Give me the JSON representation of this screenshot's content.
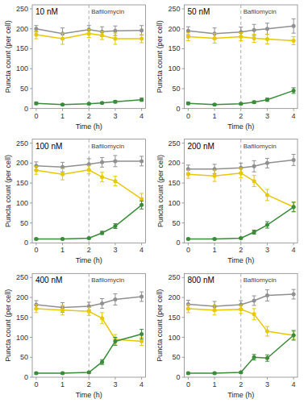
{
  "chart_data": [
    {
      "type": "line",
      "title": "10 nM",
      "xlabel": "Time (h)",
      "ylabel": "Puncta count (per cell)",
      "x": [
        0,
        1,
        2,
        2.5,
        3,
        4
      ],
      "xlim": [
        -0.15,
        4.15
      ],
      "xticks": [
        0,
        1,
        2,
        3,
        4
      ],
      "ylim": [
        0,
        260
      ],
      "yticks": [
        0,
        50,
        100,
        150,
        200,
        250
      ],
      "grid": false,
      "marker": "circle",
      "series": [
        {
          "color": "#909090",
          "values": [
            200,
            188,
            198,
            193,
            195,
            196
          ],
          "errors": [
            8,
            14,
            10,
            12,
            12,
            12
          ]
        },
        {
          "color": "#E8C800",
          "values": [
            185,
            175,
            188,
            183,
            175,
            175
          ],
          "errors": [
            10,
            14,
            10,
            10,
            14,
            10
          ]
        },
        {
          "color": "#3a8c3a",
          "values": [
            13,
            10,
            12,
            14,
            17,
            22
          ],
          "errors": [
            3,
            2,
            2,
            2,
            3,
            4
          ]
        }
      ],
      "annotations": [
        {
          "text": "Bafilomycin",
          "x": 2,
          "line_style": "dashed"
        }
      ]
    },
    {
      "type": "line",
      "title": "50 nM",
      "xlabel": "Time (h)",
      "ylabel": "Puncta count (per cell)",
      "x": [
        0,
        1,
        2,
        2.5,
        3,
        4
      ],
      "xlim": [
        -0.15,
        4.15
      ],
      "xticks": [
        0,
        1,
        2,
        3,
        4
      ],
      "ylim": [
        0,
        260
      ],
      "yticks": [
        0,
        50,
        100,
        150,
        200,
        250
      ],
      "grid": false,
      "marker": "circle",
      "series": [
        {
          "color": "#909090",
          "values": [
            195,
            188,
            192,
            197,
            200,
            207
          ],
          "errors": [
            10,
            14,
            12,
            14,
            14,
            18
          ]
        },
        {
          "color": "#E8C800",
          "values": [
            180,
            176,
            180,
            176,
            174,
            170
          ],
          "errors": [
            10,
            12,
            10,
            10,
            12,
            10
          ]
        },
        {
          "color": "#3a8c3a",
          "values": [
            13,
            10,
            12,
            16,
            22,
            45
          ],
          "errors": [
            3,
            2,
            2,
            3,
            4,
            7
          ]
        }
      ],
      "annotations": [
        {
          "text": "Bafilomycin",
          "x": 2,
          "line_style": "dashed"
        }
      ]
    },
    {
      "type": "line",
      "title": "100 nM",
      "xlabel": "Time (h)",
      "ylabel": "Puncta count (per cell)",
      "x": [
        0,
        1,
        2,
        2.5,
        3,
        4
      ],
      "xlim": [
        -0.15,
        4.15
      ],
      "xticks": [
        0,
        1,
        2,
        3,
        4
      ],
      "ylim": [
        0,
        260
      ],
      "yticks": [
        0,
        50,
        100,
        150,
        200,
        250
      ],
      "grid": false,
      "marker": "circle",
      "series": [
        {
          "color": "#909090",
          "values": [
            193,
            190,
            197,
            202,
            205,
            205
          ],
          "errors": [
            10,
            12,
            14,
            12,
            14,
            12
          ]
        },
        {
          "color": "#E8C800",
          "values": [
            182,
            172,
            183,
            165,
            155,
            110
          ],
          "errors": [
            10,
            14,
            10,
            12,
            12,
            14
          ]
        },
        {
          "color": "#3a8c3a",
          "values": [
            10,
            10,
            12,
            25,
            42,
            95
          ],
          "errors": [
            2,
            2,
            2,
            4,
            6,
            10
          ]
        }
      ],
      "annotations": [
        {
          "text": "Bafilomycin",
          "x": 2,
          "line_style": "dashed"
        }
      ]
    },
    {
      "type": "line",
      "title": "200 nM",
      "xlabel": "Time (h)",
      "ylabel": "Puncta count (per cell)",
      "x": [
        0,
        1,
        2,
        2.5,
        3,
        4
      ],
      "xlim": [
        -0.15,
        4.15
      ],
      "xticks": [
        0,
        1,
        2,
        3,
        4
      ],
      "ylim": [
        0,
        260
      ],
      "yticks": [
        0,
        50,
        100,
        150,
        200,
        250
      ],
      "grid": false,
      "marker": "circle",
      "series": [
        {
          "color": "#909090",
          "values": [
            185,
            185,
            188,
            192,
            200,
            208
          ],
          "errors": [
            10,
            12,
            12,
            14,
            12,
            14
          ]
        },
        {
          "color": "#E8C800",
          "values": [
            172,
            168,
            175,
            155,
            120,
            90
          ],
          "errors": [
            10,
            14,
            12,
            14,
            14,
            12
          ]
        },
        {
          "color": "#3a8c3a",
          "values": [
            10,
            10,
            12,
            27,
            45,
            90
          ],
          "errors": [
            2,
            2,
            2,
            5,
            8,
            12
          ]
        }
      ],
      "annotations": [
        {
          "text": "Bafilomycin",
          "x": 2,
          "line_style": "dashed"
        }
      ]
    },
    {
      "type": "line",
      "title": "400 nM",
      "xlabel": "Time (h)",
      "ylabel": "Puncta count (per cell)",
      "x": [
        0,
        1,
        2,
        2.5,
        3,
        4
      ],
      "xlim": [
        -0.15,
        4.15
      ],
      "xticks": [
        0,
        1,
        2,
        3,
        4
      ],
      "ylim": [
        0,
        260
      ],
      "yticks": [
        0,
        50,
        100,
        150,
        200,
        250
      ],
      "grid": false,
      "marker": "circle",
      "series": [
        {
          "color": "#909090",
          "values": [
            182,
            175,
            178,
            185,
            195,
            202
          ],
          "errors": [
            10,
            12,
            10,
            12,
            14,
            12
          ]
        },
        {
          "color": "#E8C800",
          "values": [
            172,
            168,
            165,
            148,
            95,
            90
          ],
          "errors": [
            10,
            12,
            10,
            14,
            12,
            10
          ]
        },
        {
          "color": "#3a8c3a",
          "values": [
            10,
            10,
            12,
            38,
            90,
            108
          ],
          "errors": [
            2,
            2,
            2,
            6,
            10,
            12
          ]
        }
      ],
      "annotations": [
        {
          "text": "Bafilomycin",
          "x": 2,
          "line_style": "dashed"
        }
      ]
    },
    {
      "type": "line",
      "title": "800 nM",
      "xlabel": "Time (h)",
      "ylabel": "Puncta count (per cell)",
      "x": [
        0,
        1,
        2,
        2.5,
        3,
        4
      ],
      "xlim": [
        -0.15,
        4.15
      ],
      "xticks": [
        0,
        1,
        2,
        3,
        4
      ],
      "ylim": [
        0,
        260
      ],
      "yticks": [
        0,
        50,
        100,
        150,
        200,
        250
      ],
      "grid": false,
      "marker": "circle",
      "series": [
        {
          "color": "#909090",
          "values": [
            183,
            178,
            182,
            192,
            205,
            208
          ],
          "errors": [
            10,
            12,
            10,
            12,
            14,
            12
          ]
        },
        {
          "color": "#E8C800",
          "values": [
            172,
            168,
            170,
            158,
            115,
            105
          ],
          "errors": [
            10,
            12,
            10,
            14,
            12,
            10
          ]
        },
        {
          "color": "#3a8c3a",
          "values": [
            10,
            10,
            12,
            50,
            48,
            105
          ],
          "errors": [
            2,
            2,
            2,
            7,
            8,
            12
          ]
        }
      ],
      "annotations": [
        {
          "text": "Bafilomycin",
          "x": 2,
          "line_style": "dashed"
        }
      ]
    }
  ]
}
